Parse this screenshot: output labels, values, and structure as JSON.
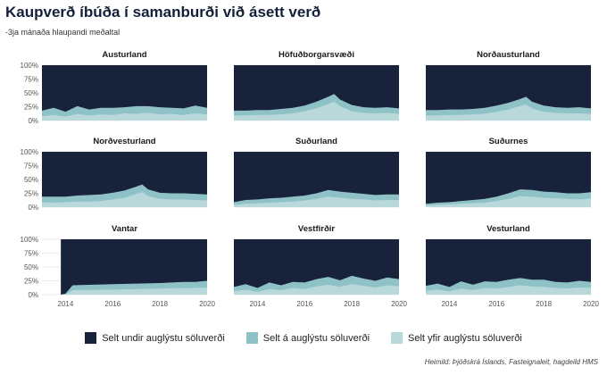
{
  "title": "Kaupverð íbúða í samanburði við ásett verð",
  "subtitle": "-3ja mánaða hlaupandi meðaltal",
  "source": "Heimild: Þjóðskrá Íslands, Fasteignaleit, hagdeild HMS",
  "colors": {
    "undir": "#19223b",
    "a": "#8ec2c7",
    "yfir": "#b9d8da"
  },
  "chart_data": {
    "type": "area",
    "facets": [
      "Austurland",
      "Höfuðborgarsvæði",
      "Norðausturland",
      "Norðvesturland",
      "Suðurland",
      "Suðurnes",
      "Vantar",
      "Vestfirðir",
      "Vesturland"
    ],
    "x_ticks": [
      "2014",
      "2016",
      "2018",
      "2020"
    ],
    "y_ticks": [
      "0%",
      "25%",
      "50%",
      "75%",
      "100%"
    ],
    "ylim": [
      0,
      100
    ],
    "xlim": [
      2013,
      2020
    ],
    "series_names": [
      "Selt undir auglýstu söluverði",
      "Selt á auglýstu söluverði",
      "Selt yfir auglýstu söluverði"
    ],
    "panels": [
      {
        "name": "Austurland",
        "x": [
          2013.0,
          2013.5,
          2014.0,
          2014.5,
          2015.0,
          2015.5,
          2016.0,
          2016.5,
          2017.0,
          2017.5,
          2018.0,
          2018.5,
          2019.0,
          2019.5,
          2020.0
        ],
        "yfir": [
          8,
          10,
          7,
          12,
          9,
          11,
          10,
          13,
          12,
          14,
          11,
          12,
          10,
          13,
          11
        ],
        "a": [
          10,
          13,
          9,
          14,
          11,
          12,
          13,
          11,
          14,
          12,
          13,
          11,
          12,
          14,
          12
        ]
      },
      {
        "name": "Höfuðborgarsvæði",
        "x": [
          2013.0,
          2013.5,
          2014.0,
          2014.5,
          2015.0,
          2015.5,
          2016.0,
          2016.5,
          2017.0,
          2017.25,
          2017.5,
          2018.0,
          2018.5,
          2019.0,
          2019.5,
          2020.0
        ],
        "yfir": [
          9,
          9,
          10,
          10,
          11,
          13,
          17,
          22,
          30,
          34,
          26,
          17,
          14,
          13,
          14,
          12
        ],
        "a": [
          9,
          9,
          9,
          9,
          10,
          10,
          10,
          12,
          13,
          14,
          12,
          11,
          10,
          10,
          10,
          10
        ]
      },
      {
        "name": "Norðausturland",
        "x": [
          2013.0,
          2013.5,
          2014.0,
          2014.5,
          2015.0,
          2015.5,
          2016.0,
          2016.5,
          2017.0,
          2017.25,
          2017.5,
          2018.0,
          2018.5,
          2019.0,
          2019.5,
          2020.0
        ],
        "yfir": [
          9,
          9,
          10,
          10,
          11,
          12,
          16,
          20,
          26,
          29,
          22,
          16,
          14,
          13,
          13,
          12
        ],
        "a": [
          10,
          10,
          10,
          10,
          10,
          11,
          11,
          12,
          13,
          14,
          12,
          11,
          10,
          10,
          11,
          10
        ]
      },
      {
        "name": "Norðvesturland",
        "x": [
          2013.0,
          2013.5,
          2014.0,
          2014.5,
          2015.0,
          2015.5,
          2016.0,
          2016.5,
          2017.0,
          2017.25,
          2017.5,
          2018.0,
          2018.5,
          2019.0,
          2019.5,
          2020.0
        ],
        "yfir": [
          9,
          8,
          9,
          10,
          10,
          11,
          14,
          17,
          24,
          27,
          20,
          15,
          14,
          14,
          13,
          12
        ],
        "a": [
          10,
          11,
          10,
          11,
          12,
          12,
          12,
          13,
          13,
          14,
          12,
          11,
          11,
          11,
          11,
          11
        ]
      },
      {
        "name": "Suðurland",
        "x": [
          2013.0,
          2013.5,
          2014.0,
          2014.5,
          2015.0,
          2015.5,
          2016.0,
          2016.5,
          2017.0,
          2017.5,
          2018.0,
          2018.5,
          2019.0,
          2019.5,
          2020.0
        ],
        "yfir": [
          4,
          6,
          7,
          8,
          9,
          10,
          12,
          15,
          19,
          17,
          15,
          14,
          12,
          13,
          13
        ],
        "a": [
          5,
          7,
          7,
          8,
          8,
          9,
          9,
          10,
          12,
          11,
          11,
          10,
          10,
          10,
          10
        ]
      },
      {
        "name": "Suðurnes",
        "x": [
          2013.0,
          2013.5,
          2014.0,
          2014.5,
          2015.0,
          2015.5,
          2016.0,
          2016.5,
          2017.0,
          2017.5,
          2018.0,
          2018.5,
          2019.0,
          2019.5,
          2020.0
        ],
        "yfir": [
          3,
          4,
          5,
          6,
          7,
          8,
          11,
          15,
          20,
          19,
          17,
          16,
          15,
          14,
          16
        ],
        "a": [
          3,
          4,
          4,
          5,
          6,
          7,
          8,
          10,
          12,
          12,
          11,
          11,
          10,
          11,
          11
        ]
      },
      {
        "name": "Vantar",
        "x": [
          2013.0,
          2013.8,
          2014.0,
          2014.3,
          2016.0,
          2018.0,
          2019.0,
          2019.5,
          2020.0
        ],
        "yfir": [
          0,
          0,
          0,
          8,
          9,
          11,
          12,
          12,
          13
        ],
        "a": [
          0,
          0,
          2,
          9,
          10,
          10,
          11,
          11,
          12
        ]
      },
      {
        "name": "Vestfirðir",
        "x": [
          2013.0,
          2013.5,
          2014.0,
          2014.5,
          2015.0,
          2015.5,
          2016.0,
          2016.5,
          2017.0,
          2017.5,
          2018.0,
          2018.5,
          2019.0,
          2019.5,
          2020.0
        ],
        "yfir": [
          6,
          9,
          5,
          10,
          8,
          12,
          10,
          15,
          18,
          14,
          19,
          16,
          13,
          17,
          15
        ],
        "a": [
          8,
          10,
          7,
          12,
          9,
          11,
          12,
          13,
          14,
          12,
          15,
          13,
          12,
          14,
          13
        ]
      },
      {
        "name": "Vesturland",
        "x": [
          2013.0,
          2013.5,
          2014.0,
          2014.5,
          2015.0,
          2015.5,
          2016.0,
          2016.5,
          2017.0,
          2017.5,
          2018.0,
          2018.5,
          2019.0,
          2019.5,
          2020.0
        ],
        "yfir": [
          7,
          9,
          6,
          11,
          8,
          12,
          11,
          14,
          17,
          15,
          14,
          12,
          11,
          13,
          12
        ],
        "a": [
          9,
          11,
          8,
          13,
          10,
          12,
          12,
          13,
          13,
          12,
          13,
          11,
          11,
          12,
          11
        ]
      }
    ],
    "legend_position": "bottom",
    "grid": true
  }
}
